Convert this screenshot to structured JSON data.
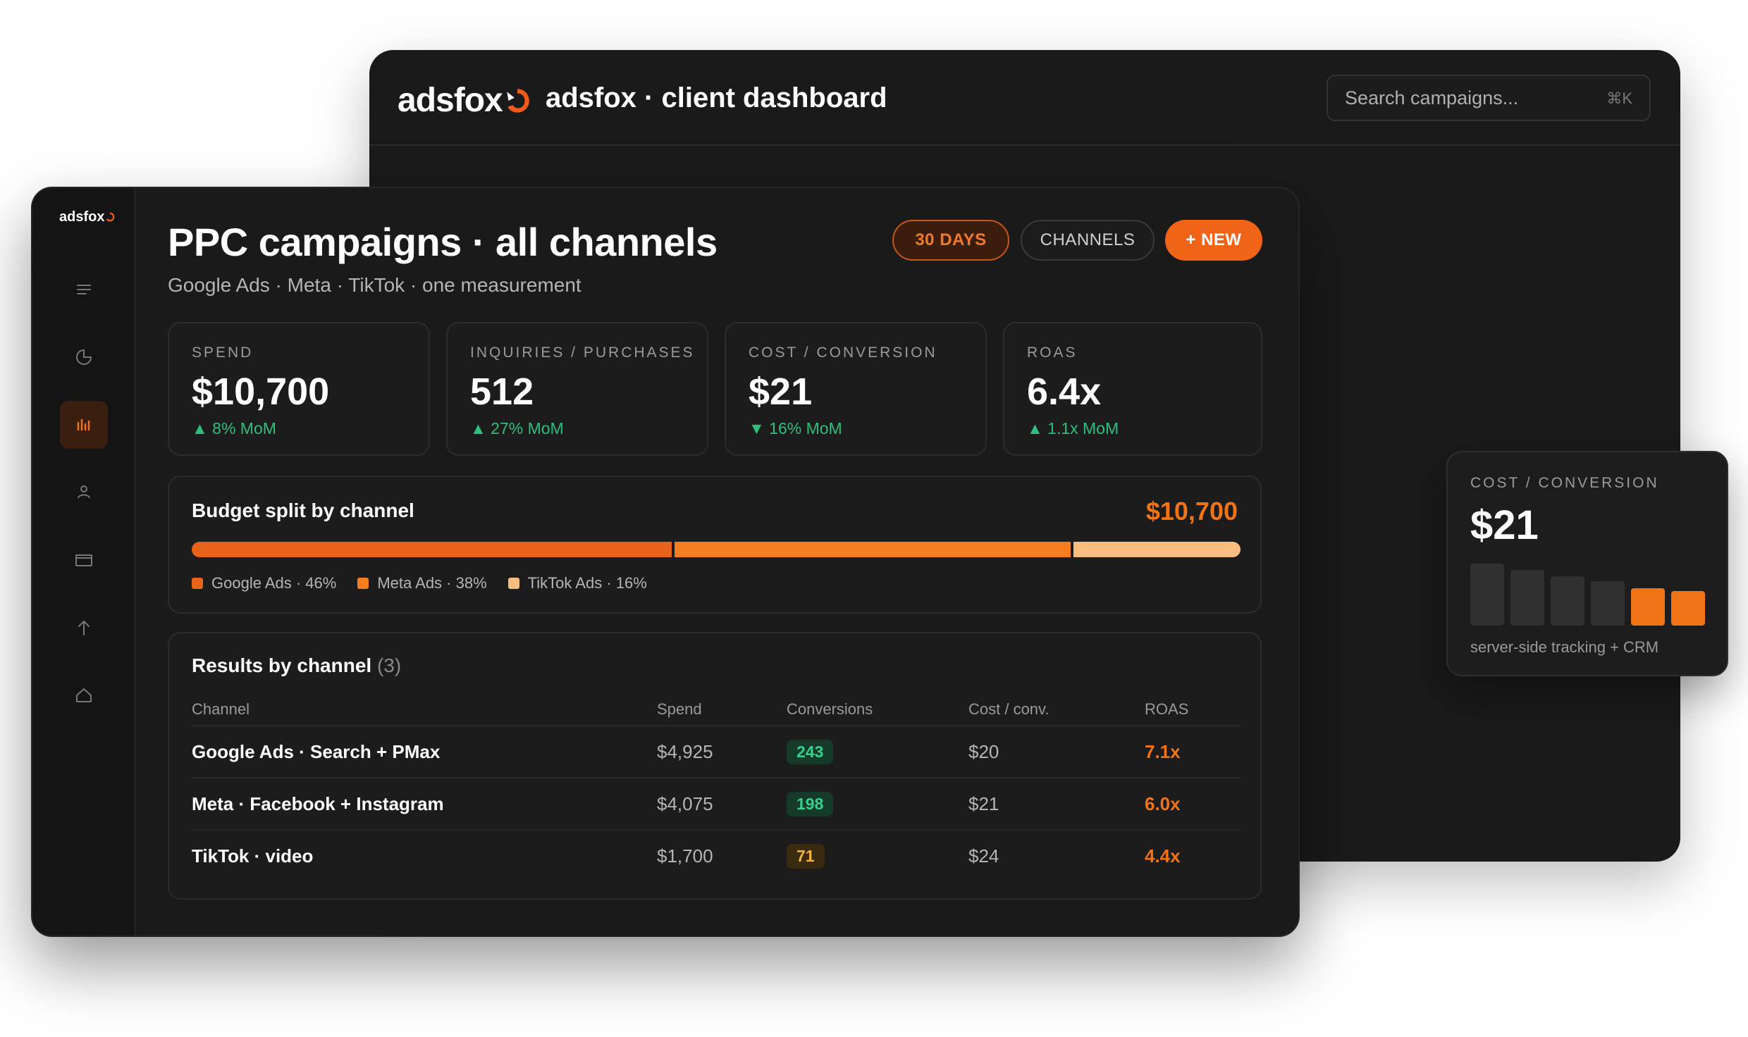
{
  "back_window": {
    "logo_text": "adsfox",
    "title": "adsfox · client dashboard",
    "search_placeholder": "Search campaigns...",
    "search_shortcut": "⌘K"
  },
  "float_card": {
    "label": "COST / CONVERSION",
    "value": "$21",
    "bars": [
      1.0,
      0.9,
      0.8,
      0.72,
      0.6,
      0.56
    ],
    "footer": "server-side tracking + CRM"
  },
  "sidebar": {
    "logo_text": "adsfox",
    "items": [
      {
        "icon": "menu-icon",
        "active": false
      },
      {
        "icon": "pie-chart-icon",
        "active": false
      },
      {
        "icon": "bar-chart-icon",
        "active": true
      },
      {
        "icon": "user-icon",
        "active": false
      },
      {
        "icon": "card-icon",
        "active": false
      },
      {
        "icon": "arrow-up-icon",
        "active": false
      },
      {
        "icon": "home-icon",
        "active": false
      }
    ]
  },
  "header": {
    "title": "PPC campaigns · all channels",
    "subtitle": "Google Ads · Meta · TikTok · one measurement",
    "range_label": "30 DAYS",
    "channels_label": "CHANNELS",
    "new_label": "+ NEW"
  },
  "kpis": [
    {
      "label": "SPEND",
      "value": "$10,700",
      "delta": "▲ 8% MoM"
    },
    {
      "label": "INQUIRIES / PURCHASES",
      "value": "512",
      "delta": "▲ 27% MoM"
    },
    {
      "label": "COST / CONVERSION",
      "value": "$21",
      "delta": "▼ 16% MoM"
    },
    {
      "label": "ROAS",
      "value": "6.4x",
      "delta": "▲ 1.1x MoM"
    }
  ],
  "budget": {
    "title": "Budget split by channel",
    "total": "$10,700",
    "segments": [
      {
        "label": "Google Ads · 46%",
        "share": 46,
        "color": "#e8621a"
      },
      {
        "label": "Meta Ads · 38%",
        "share": 38,
        "color": "#f47d1f"
      },
      {
        "label": "TikTok Ads · 16%",
        "share": 16,
        "color": "#f9bd82"
      }
    ]
  },
  "results": {
    "title": "Results by channel",
    "count": "(3)",
    "columns": [
      "Channel",
      "Spend",
      "Conversions",
      "Cost / conv.",
      "ROAS"
    ],
    "rows": [
      {
        "channel": "Google Ads · Search + PMax",
        "spend": "$4,925",
        "conversions": "243",
        "badge": "green",
        "cost": "$20",
        "roas": "7.1x"
      },
      {
        "channel": "Meta · Facebook + Instagram",
        "spend": "$4,075",
        "conversions": "198",
        "badge": "green",
        "cost": "$21",
        "roas": "6.0x"
      },
      {
        "channel": "TikTok · video",
        "spend": "$1,700",
        "conversions": "71",
        "badge": "amber",
        "cost": "$24",
        "roas": "4.4x"
      }
    ]
  },
  "colors": {
    "accent": "#f07315",
    "positive": "#2fbf7a",
    "background": "#1a1a1a"
  }
}
